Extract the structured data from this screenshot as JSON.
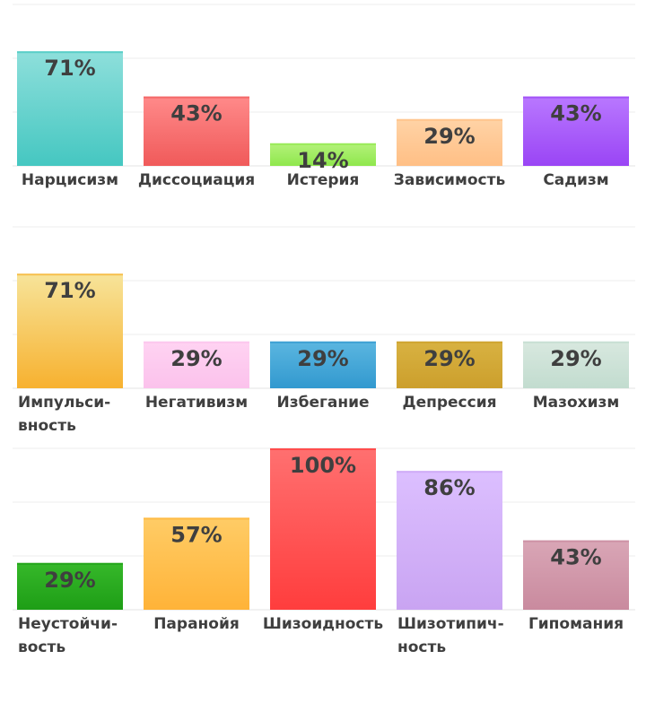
{
  "chart_data": [
    {
      "type": "bar",
      "categories": [
        "Нарцисизм",
        "Диссоциация",
        "Истерия",
        "Зависимость",
        "Садизм"
      ],
      "values": [
        71,
        43,
        14,
        29,
        43
      ],
      "value_labels": [
        "71%",
        "43%",
        "14%",
        "29%",
        "43%"
      ],
      "colors": [
        [
          "#8edfdb",
          "#45c7c1"
        ],
        [
          "#ff8a8a",
          "#f05a5a"
        ],
        [
          "#b4f27a",
          "#8fe74d"
        ],
        [
          "#ffd3a6",
          "#ffbf85"
        ],
        [
          "#b978ff",
          "#9a45f5"
        ]
      ],
      "ylim": [
        0,
        100
      ],
      "grid": true
    },
    {
      "type": "bar",
      "categories": [
        "Импульси-\nвность",
        "Негативизм",
        "Избегание",
        "Депрессия",
        "Мазохизм"
      ],
      "values": [
        71,
        29,
        29,
        29,
        29
      ],
      "value_labels": [
        "71%",
        "29%",
        "29%",
        "29%",
        "29%"
      ],
      "colors": [
        [
          "#f7e49a",
          "#f7b12f"
        ],
        [
          "#ffd3f2",
          "#fbc2ec"
        ],
        [
          "#5bb6e0",
          "#3299cf"
        ],
        [
          "#d8b242",
          "#cc9f2c"
        ],
        [
          "#d8e8df",
          "#c2dccf"
        ]
      ],
      "ylim": [
        0,
        100
      ],
      "grid": true
    },
    {
      "type": "bar",
      "categories": [
        "Неустойчи-\nвость",
        "Паранойя",
        "Шизоидность",
        "Шизотипич-\nность",
        "Гипомания"
      ],
      "values": [
        29,
        57,
        100,
        86,
        43
      ],
      "value_labels": [
        "29%",
        "57%",
        "100%",
        "86%",
        "43%"
      ],
      "colors": [
        [
          "#36b82a",
          "#1e9e16"
        ],
        [
          "#ffcc66",
          "#ffb338"
        ],
        [
          "#ff7070",
          "#ff3d3d"
        ],
        [
          "#dcbfff",
          "#c9a4f2"
        ],
        [
          "#d9a6b6",
          "#c98a9e"
        ]
      ],
      "ylim": [
        0,
        100
      ],
      "grid": true
    }
  ]
}
